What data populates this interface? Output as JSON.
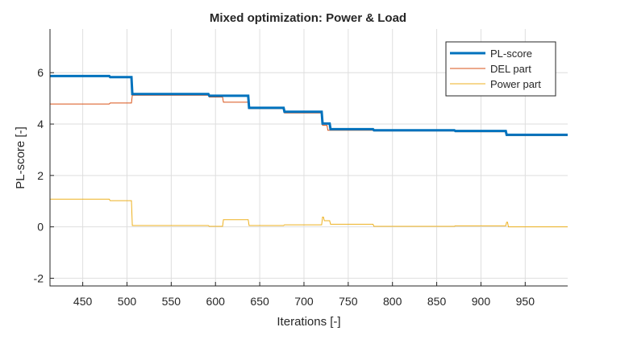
{
  "chart_data": {
    "type": "line",
    "title": "Mixed optimization: Power & Load",
    "xlabel": "Iterations [-]",
    "ylabel": "PL-score [-]",
    "xlim": [
      413,
      998
    ],
    "ylim": [
      -2.3,
      7.7
    ],
    "xticks": [
      450,
      500,
      550,
      600,
      650,
      700,
      750,
      800,
      850,
      900,
      950
    ],
    "yticks": [
      -2,
      0,
      2,
      4,
      6
    ],
    "xtick_labels": [
      "450",
      "500",
      "550",
      "600",
      "650",
      "700",
      "750",
      "800",
      "850",
      "900",
      "950"
    ],
    "ytick_labels": [
      "-2",
      "0",
      "2",
      "4",
      "6"
    ],
    "grid": true,
    "legend_position": "top-right",
    "series": [
      {
        "name": "PL-score",
        "color": "#0072BD",
        "line_width": "thick",
        "x": [
          413,
          480,
          481,
          505,
          506,
          592,
          593,
          637,
          638,
          677,
          678,
          720,
          721,
          729,
          730,
          778,
          779,
          870,
          871,
          928,
          929,
          998
        ],
        "y": [
          5.87,
          5.87,
          5.83,
          5.83,
          5.17,
          5.17,
          5.1,
          5.1,
          4.63,
          4.63,
          4.48,
          4.48,
          4.02,
          4.02,
          3.8,
          3.8,
          3.76,
          3.76,
          3.73,
          3.73,
          3.58,
          3.58
        ]
      },
      {
        "name": "DEL part",
        "color": "#D95319",
        "line_width": "thin",
        "x": [
          413,
          480,
          481,
          505,
          506,
          592,
          593,
          608,
          609,
          637,
          638,
          677,
          678,
          720,
          721,
          726,
          727,
          778,
          779,
          870,
          871,
          928,
          929,
          998
        ],
        "y": [
          4.78,
          4.78,
          4.82,
          4.82,
          5.12,
          5.12,
          5.05,
          5.05,
          4.85,
          4.85,
          4.6,
          4.6,
          4.43,
          4.43,
          3.95,
          3.95,
          3.76,
          3.76,
          3.73,
          3.73,
          3.7,
          3.7,
          3.55,
          3.55
        ]
      },
      {
        "name": "Power part",
        "color": "#EDB120",
        "line_width": "thin",
        "x": [
          413,
          480,
          481,
          505,
          506,
          592,
          593,
          608,
          609,
          637,
          638,
          677,
          678,
          720,
          721,
          722,
          723,
          729,
          730,
          778,
          779,
          870,
          871,
          928,
          929,
          930,
          931,
          998
        ],
        "y": [
          1.08,
          1.08,
          1.02,
          1.02,
          0.05,
          0.05,
          0.02,
          0.02,
          0.28,
          0.28,
          0.05,
          0.05,
          0.08,
          0.08,
          0.38,
          0.38,
          0.24,
          0.24,
          0.1,
          0.1,
          0.02,
          0.02,
          0.04,
          0.04,
          0.18,
          0.18,
          0.0,
          0.0
        ]
      }
    ]
  }
}
